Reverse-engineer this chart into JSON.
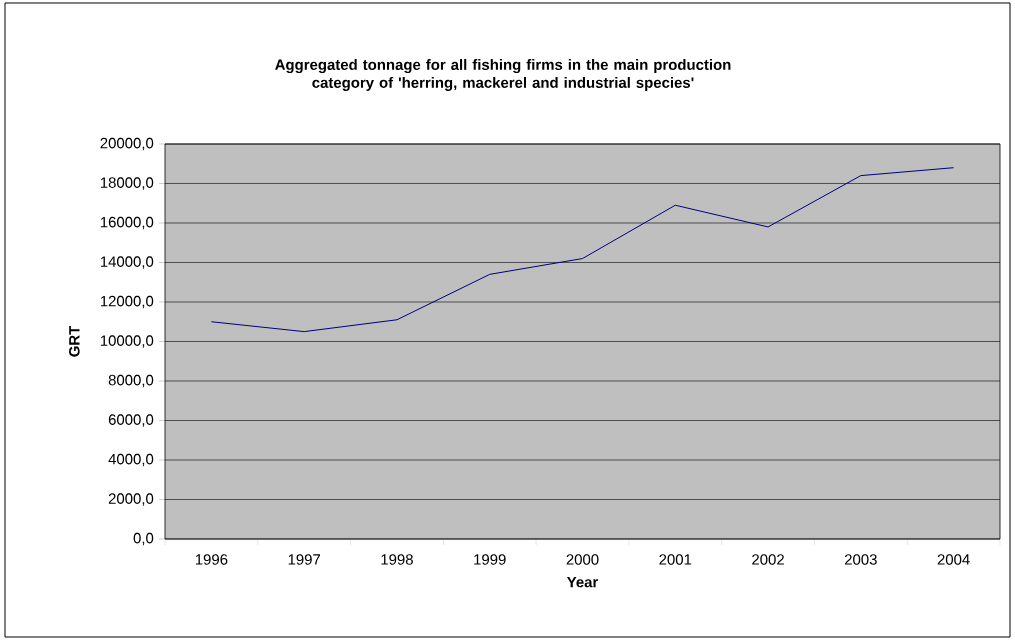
{
  "chart_data": {
    "type": "line",
    "title": "Aggregated tonnage for all fishing firms in the main production category of 'herring, mackerel and industrial species'",
    "xlabel": "Year",
    "ylabel": "GRT",
    "categories": [
      "1996",
      "1997",
      "1998",
      "1999",
      "2000",
      "2001",
      "2002",
      "2003",
      "2004"
    ],
    "values": [
      11000,
      10500,
      11100,
      13400,
      14200,
      16900,
      15800,
      18400,
      18800
    ],
    "color": "#000080",
    "ylim": [
      0,
      20000
    ],
    "yticks": [
      {
        "value": 0,
        "label": "0,0"
      },
      {
        "value": 2000,
        "label": "2000,0"
      },
      {
        "value": 4000,
        "label": "4000,0"
      },
      {
        "value": 6000,
        "label": "6000,0"
      },
      {
        "value": 8000,
        "label": "8000,0"
      },
      {
        "value": 10000,
        "label": "10000,0"
      },
      {
        "value": 12000,
        "label": "12000,0"
      },
      {
        "value": 14000,
        "label": "14000,0"
      },
      {
        "value": 16000,
        "label": "16000,0"
      },
      {
        "value": 18000,
        "label": "18000,0"
      },
      {
        "value": 20000,
        "label": "20000,0"
      }
    ],
    "grid": "y"
  }
}
